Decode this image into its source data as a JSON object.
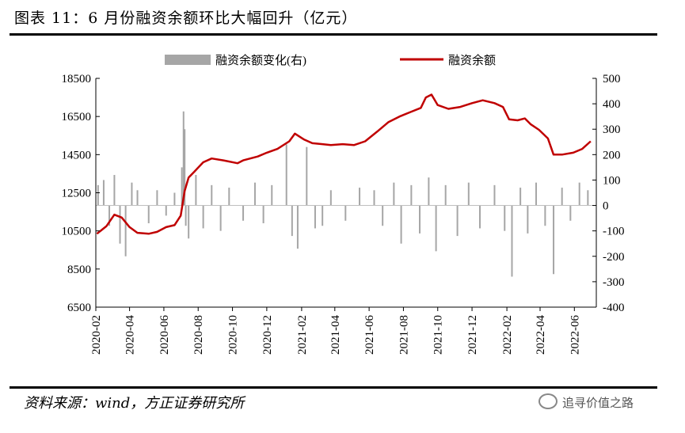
{
  "figure": {
    "title": "图表 11：6 月份融资余额环比大幅回升（亿元）",
    "source": "资料来源：wind，方正证券研究所",
    "watermark": "追寻价值之路"
  },
  "chart_data": {
    "type": "line",
    "title": "图表 11：6 月份融资余额环比大幅回升（亿元）",
    "legend_position": "top",
    "grid": false,
    "x_ticks": [
      "2020-02",
      "2020-04",
      "2020-06",
      "2020-08",
      "2020-10",
      "2020-12",
      "2021-02",
      "2021-04",
      "2021-06",
      "2021-08",
      "2021-10",
      "2021-12",
      "2022-02",
      "2022-04",
      "2022-06"
    ],
    "y_left": {
      "range": [
        6500,
        18500
      ],
      "ticks": [
        6500,
        8500,
        10500,
        12500,
        14500,
        16500,
        18500
      ]
    },
    "y_right": {
      "range": [
        -400,
        500
      ],
      "ticks": [
        -400,
        -300,
        -200,
        -100,
        0,
        100,
        200,
        300,
        400,
        500
      ]
    },
    "series": [
      {
        "name": "融资余额",
        "axis": "left",
        "color": "#c00000",
        "style": "line",
        "points": [
          [
            "2020-02-03",
            10350
          ],
          [
            "2020-02-20",
            10750
          ],
          [
            "2020-03-05",
            11350
          ],
          [
            "2020-03-18",
            11200
          ],
          [
            "2020-04-01",
            10700
          ],
          [
            "2020-04-15",
            10400
          ],
          [
            "2020-05-05",
            10350
          ],
          [
            "2020-05-20",
            10450
          ],
          [
            "2020-06-05",
            10700
          ],
          [
            "2020-06-20",
            10800
          ],
          [
            "2020-07-01",
            11300
          ],
          [
            "2020-07-08",
            12600
          ],
          [
            "2020-07-15",
            13300
          ],
          [
            "2020-07-25",
            13600
          ],
          [
            "2020-08-10",
            14100
          ],
          [
            "2020-08-25",
            14300
          ],
          [
            "2020-09-15",
            14200
          ],
          [
            "2020-10-10",
            14050
          ],
          [
            "2020-10-20",
            14200
          ],
          [
            "2020-11-15",
            14400
          ],
          [
            "2020-12-01",
            14600
          ],
          [
            "2020-12-20",
            14800
          ],
          [
            "2021-01-10",
            15200
          ],
          [
            "2021-01-20",
            15600
          ],
          [
            "2021-02-05",
            15300
          ],
          [
            "2021-02-20",
            15100
          ],
          [
            "2021-03-10",
            15050
          ],
          [
            "2021-03-25",
            15000
          ],
          [
            "2021-04-15",
            15050
          ],
          [
            "2021-05-05",
            15000
          ],
          [
            "2021-05-25",
            15200
          ],
          [
            "2021-06-15",
            15700
          ],
          [
            "2021-07-05",
            16200
          ],
          [
            "2021-07-25",
            16500
          ],
          [
            "2021-08-15",
            16750
          ],
          [
            "2021-09-01",
            16950
          ],
          [
            "2021-09-10",
            17500
          ],
          [
            "2021-09-20",
            17650
          ],
          [
            "2021-10-01",
            17100
          ],
          [
            "2021-10-20",
            16900
          ],
          [
            "2021-11-10",
            17000
          ],
          [
            "2021-12-01",
            17200
          ],
          [
            "2021-12-20",
            17350
          ],
          [
            "2022-01-10",
            17200
          ],
          [
            "2022-01-25",
            17000
          ],
          [
            "2022-02-05",
            16350
          ],
          [
            "2022-02-20",
            16300
          ],
          [
            "2022-03-05",
            16400
          ],
          [
            "2022-03-15",
            16100
          ],
          [
            "2022-03-30",
            15800
          ],
          [
            "2022-04-15",
            15350
          ],
          [
            "2022-04-25",
            14500
          ],
          [
            "2022-05-10",
            14500
          ],
          [
            "2022-05-30",
            14600
          ],
          [
            "2022-06-15",
            14800
          ],
          [
            "2022-06-30",
            15200
          ]
        ]
      },
      {
        "name": "融资余额变化(右)",
        "axis": "right",
        "color": "#a6a6a6",
        "style": "bar",
        "points": [
          [
            "2020-02-05",
            80
          ],
          [
            "2020-02-15",
            100
          ],
          [
            "2020-02-25",
            -80
          ],
          [
            "2020-03-05",
            120
          ],
          [
            "2020-03-15",
            -150
          ],
          [
            "2020-03-25",
            -200
          ],
          [
            "2020-04-05",
            90
          ],
          [
            "2020-04-15",
            60
          ],
          [
            "2020-05-05",
            -70
          ],
          [
            "2020-05-20",
            60
          ],
          [
            "2020-06-05",
            -40
          ],
          [
            "2020-06-20",
            50
          ],
          [
            "2020-07-03",
            150
          ],
          [
            "2020-07-06",
            370
          ],
          [
            "2020-07-08",
            300
          ],
          [
            "2020-07-10",
            -80
          ],
          [
            "2020-07-15",
            -130
          ],
          [
            "2020-07-28",
            120
          ],
          [
            "2020-08-10",
            -90
          ],
          [
            "2020-08-25",
            80
          ],
          [
            "2020-09-10",
            -100
          ],
          [
            "2020-09-25",
            70
          ],
          [
            "2020-10-20",
            -60
          ],
          [
            "2020-11-10",
            90
          ],
          [
            "2020-11-25",
            -70
          ],
          [
            "2020-12-10",
            80
          ],
          [
            "2021-01-05",
            240
          ],
          [
            "2021-01-15",
            -120
          ],
          [
            "2021-01-25",
            -170
          ],
          [
            "2021-02-10",
            230
          ],
          [
            "2021-02-25",
            -90
          ],
          [
            "2021-03-10",
            -80
          ],
          [
            "2021-03-25",
            60
          ],
          [
            "2021-04-20",
            -60
          ],
          [
            "2021-05-15",
            70
          ],
          [
            "2021-06-10",
            60
          ],
          [
            "2021-06-25",
            -80
          ],
          [
            "2021-07-15",
            90
          ],
          [
            "2021-07-28",
            -150
          ],
          [
            "2021-08-15",
            80
          ],
          [
            "2021-08-30",
            -110
          ],
          [
            "2021-09-15",
            110
          ],
          [
            "2021-09-28",
            -180
          ],
          [
            "2021-10-15",
            80
          ],
          [
            "2021-11-05",
            -120
          ],
          [
            "2021-11-25",
            90
          ],
          [
            "2021-12-15",
            -90
          ],
          [
            "2022-01-10",
            80
          ],
          [
            "2022-01-28",
            -100
          ],
          [
            "2022-02-10",
            -280
          ],
          [
            "2022-02-25",
            70
          ],
          [
            "2022-03-10",
            -110
          ],
          [
            "2022-03-25",
            90
          ],
          [
            "2022-04-10",
            -80
          ],
          [
            "2022-04-25",
            -270
          ],
          [
            "2022-05-10",
            70
          ],
          [
            "2022-05-25",
            -60
          ],
          [
            "2022-06-10",
            90
          ],
          [
            "2022-06-25",
            60
          ]
        ]
      }
    ]
  }
}
